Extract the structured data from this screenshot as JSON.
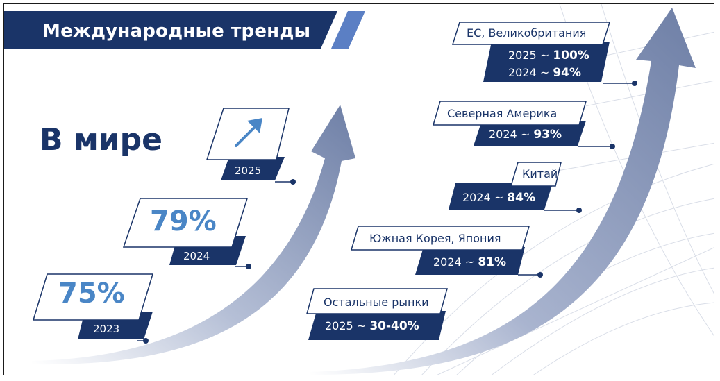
{
  "header": {
    "title": "Международные тренды"
  },
  "world": {
    "heading": "В мире"
  },
  "world_stats": [
    {
      "year": "2023",
      "value": "75%"
    },
    {
      "year": "2024",
      "value": "79%"
    },
    {
      "year": "2025",
      "icon": "trend-up-arrow-icon"
    }
  ],
  "regions": [
    {
      "name": "ЕС, Великобритания",
      "lines": [
        {
          "year": "2025",
          "sep": "~",
          "value": "100%"
        },
        {
          "year": "2024",
          "sep": "~",
          "value": "94%"
        }
      ]
    },
    {
      "name": "Северная Америка",
      "lines": [
        {
          "year": "2024",
          "sep": "~",
          "value": "93%"
        }
      ]
    },
    {
      "name": "Китай",
      "lines": [
        {
          "year": "2024",
          "sep": "~",
          "value": "84%"
        }
      ]
    },
    {
      "name": "Южная Корея, Япония",
      "lines": [
        {
          "year": "2024",
          "sep": "~",
          "value": "81%"
        }
      ]
    },
    {
      "name": "Остальные рынки",
      "lines": [
        {
          "year": "2025",
          "sep": "~",
          "value": "30-40%"
        }
      ]
    }
  ],
  "colors": {
    "navy": "#1a3468",
    "accent_blue": "#4a86c6",
    "stripe_blue": "#5b7fc4",
    "arrow_grey_blue": "#6e7fa6"
  }
}
